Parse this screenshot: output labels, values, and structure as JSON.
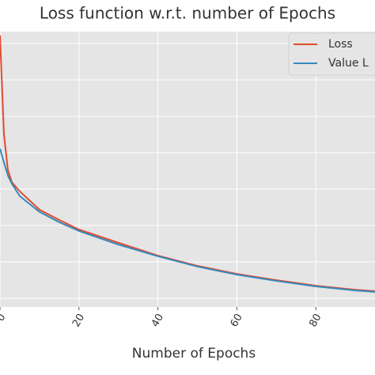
{
  "chart_data": {
    "type": "line",
    "title": "Loss function w.r.t. number of Epochs",
    "x_label": "Number of Epochs",
    "x": [
      0,
      1,
      2,
      3,
      5,
      10,
      15,
      20,
      30,
      40,
      50,
      60,
      70,
      80,
      90,
      95
    ],
    "series": [
      {
        "name": "Loss",
        "color": "#e24a33",
        "values": [
          7.4,
          4.7,
          3.73,
          3.4,
          3.15,
          2.65,
          2.37,
          2.11,
          1.75,
          1.4,
          1.12,
          0.9,
          0.73,
          0.58,
          0.47,
          0.43
        ]
      },
      {
        "name": "Value L",
        "color": "#348abd",
        "values": [
          4.31,
          3.94,
          3.58,
          3.36,
          3.02,
          2.59,
          2.31,
          2.07,
          1.7,
          1.38,
          1.1,
          0.88,
          0.71,
          0.56,
          0.45,
          0.41
        ]
      }
    ],
    "xlim": [
      0,
      95
    ],
    "xticks": [
      0,
      20,
      40,
      60,
      80
    ],
    "ylim": [
      0,
      7.5
    ],
    "grid": true,
    "legend": "upper right"
  }
}
